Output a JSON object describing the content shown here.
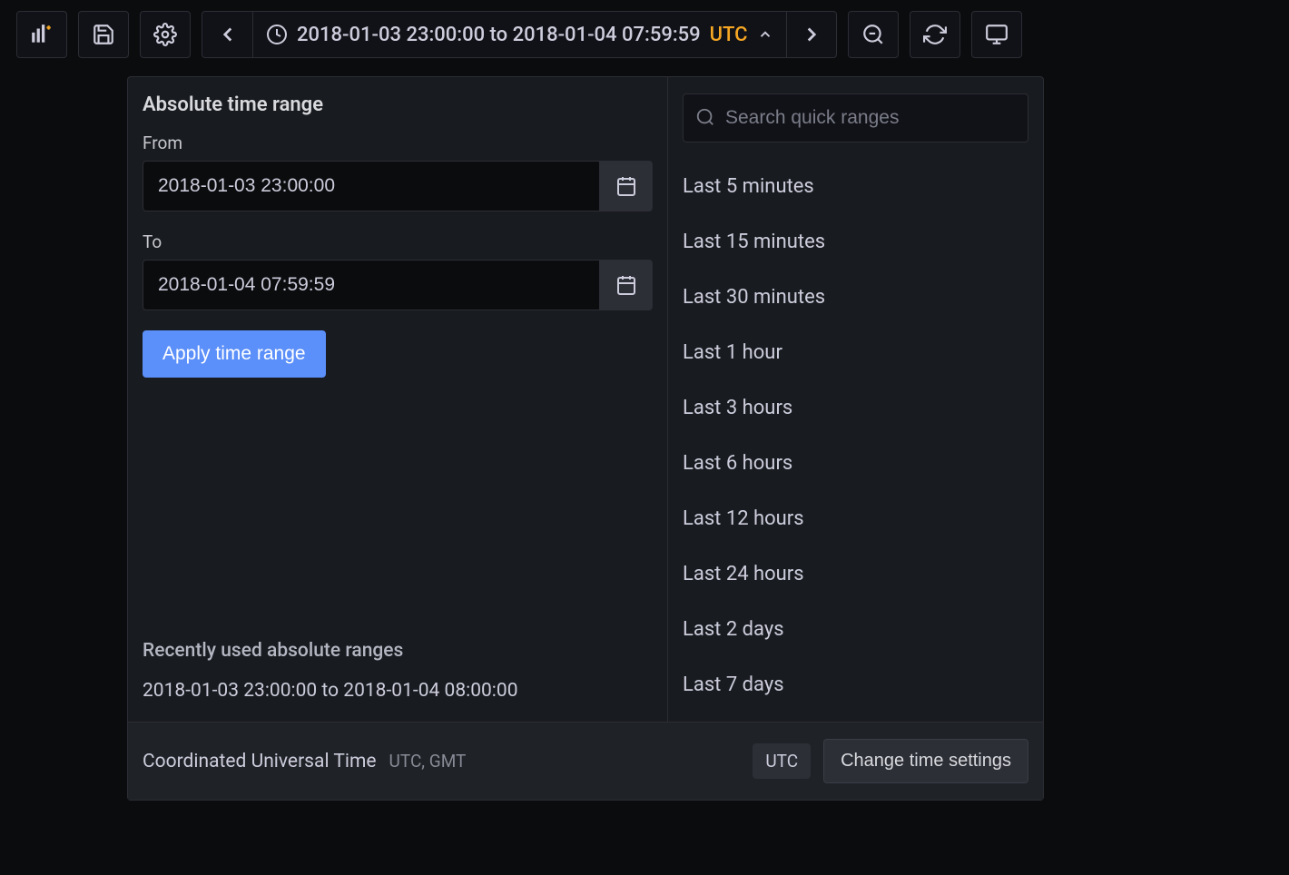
{
  "toolbar": {
    "time_range_display": "2018-01-03 23:00:00 to 2018-01-04 07:59:59",
    "timezone_badge": "UTC"
  },
  "dropdown": {
    "absolute": {
      "title": "Absolute time range",
      "from_label": "From",
      "from_value": "2018-01-03 23:00:00",
      "to_label": "To",
      "to_value": "2018-01-04 07:59:59",
      "apply_label": "Apply time range"
    },
    "recent": {
      "title": "Recently used absolute ranges",
      "items": [
        "2018-01-03 23:00:00 to 2018-01-04 08:00:00"
      ]
    },
    "quick": {
      "search_placeholder": "Search quick ranges",
      "items": [
        "Last 5 minutes",
        "Last 15 minutes",
        "Last 30 minutes",
        "Last 1 hour",
        "Last 3 hours",
        "Last 6 hours",
        "Last 12 hours",
        "Last 24 hours",
        "Last 2 days",
        "Last 7 days"
      ]
    },
    "footer": {
      "tz_name": "Coordinated Universal Time",
      "tz_abbr": "UTC, GMT",
      "utc_badge": "UTC",
      "change_label": "Change time settings"
    }
  },
  "colors": {
    "bg": "#0b0c0e",
    "panel": "#181b1f",
    "border": "#2c2d35",
    "text": "#ccccdc",
    "accent_orange": "#f5a623",
    "accent_blue": "#5b8ff9"
  }
}
